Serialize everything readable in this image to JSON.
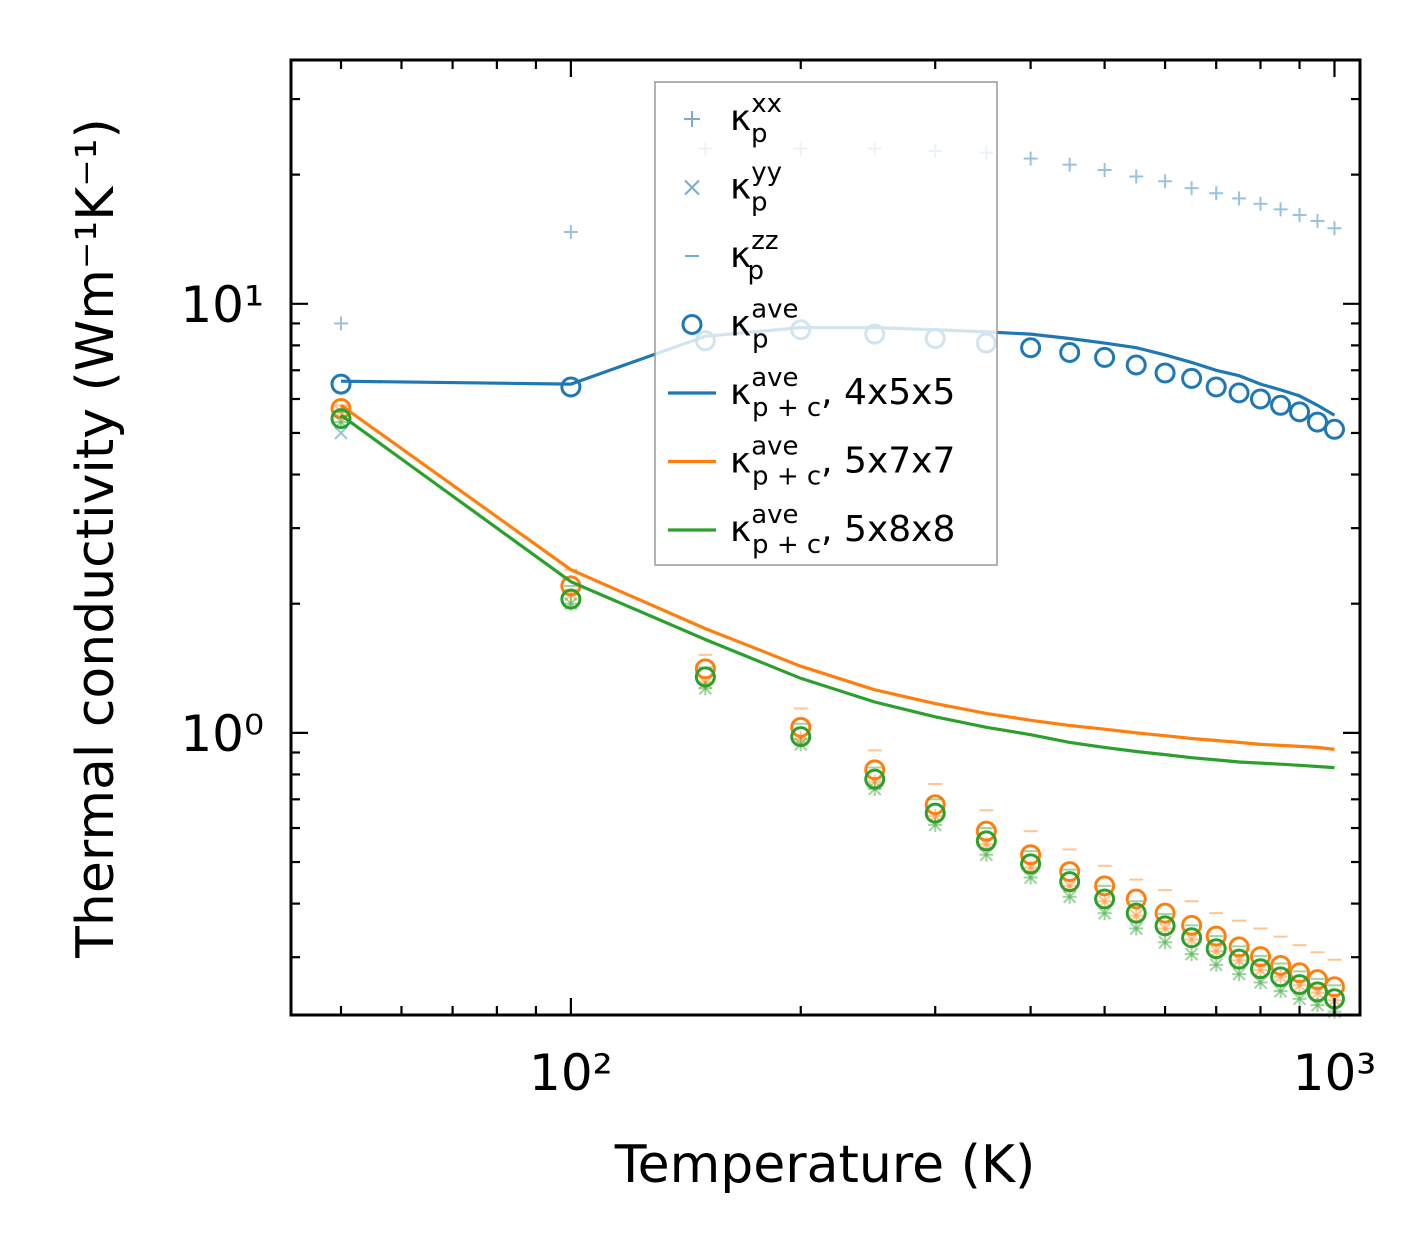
{
  "chart_data": {
    "type": "scatter",
    "title": "",
    "xlabel": "Temperature (K)",
    "ylabel": "Thermal conductivity (Wm⁻¹K⁻¹)",
    "xscale": "log",
    "yscale": "log",
    "xlim": [
      43,
      1080
    ],
    "ylim": [
      0.22,
      37
    ],
    "xticks": [
      {
        "value": 100,
        "label": "10²"
      },
      {
        "value": 1000,
        "label": "10³"
      }
    ],
    "yticks": [
      {
        "value": 1,
        "label": "10⁰"
      },
      {
        "value": 10,
        "label": "10¹"
      }
    ],
    "x": [
      50,
      100,
      150,
      200,
      250,
      300,
      350,
      400,
      450,
      500,
      550,
      600,
      650,
      700,
      750,
      800,
      850,
      900,
      950,
      1000
    ],
    "legend_position": "top-center",
    "legend": [
      {
        "label": "κ",
        "sub": "p",
        "sup": "xx",
        "suffix": "",
        "marker": "plus",
        "color": "#1f77b4"
      },
      {
        "label": "κ",
        "sub": "p",
        "sup": "yy",
        "suffix": "",
        "marker": "x",
        "color": "#1f77b4"
      },
      {
        "label": "κ",
        "sub": "p",
        "sup": "zz",
        "suffix": "",
        "marker": "dash",
        "color": "#1f77b4"
      },
      {
        "label": "κ",
        "sub": "p",
        "sup": "ave",
        "suffix": "",
        "marker": "circle",
        "color": "#1f77b4"
      },
      {
        "label": "κ",
        "sub": "p + c",
        "sup": "ave",
        "suffix": ", 4x5x5",
        "marker": "line",
        "color": "#1f77b4"
      },
      {
        "label": "κ",
        "sub": "p + c",
        "sup": "ave",
        "suffix": ", 5x7x7",
        "marker": "line",
        "color": "#ff7f0e"
      },
      {
        "label": "κ",
        "sub": "p + c",
        "sup": "ave",
        "suffix": ", 5x8x8",
        "marker": "line",
        "color": "#2ca02c"
      }
    ],
    "series": [
      {
        "name": "4x5x5",
        "color": "#1f77b4",
        "kp_xx": [
          9.0,
          14.7,
          23.0,
          23.0,
          23.0,
          22.7,
          22.5,
          21.8,
          21.1,
          20.5,
          19.8,
          19.3,
          18.6,
          18.1,
          17.6,
          17.1,
          16.6,
          16.1,
          15.6,
          15.0
        ],
        "kp_yy": [
          5.0,
          null,
          null,
          null,
          null,
          null,
          null,
          null,
          null,
          null,
          null,
          null,
          null,
          null,
          null,
          null,
          null,
          null,
          null,
          null
        ],
        "kp_zz": [
          null,
          null,
          null,
          null,
          null,
          null,
          null,
          null,
          null,
          null,
          null,
          null,
          null,
          null,
          null,
          null,
          null,
          null,
          null,
          null
        ],
        "kp_ave": [
          6.5,
          6.4,
          8.2,
          8.7,
          8.5,
          8.3,
          8.1,
          7.9,
          7.7,
          7.5,
          7.2,
          6.9,
          6.7,
          6.4,
          6.2,
          6.0,
          5.8,
          5.6,
          5.3,
          5.1
        ],
        "kpc_ave": [
          6.6,
          6.5,
          8.4,
          8.8,
          8.8,
          8.7,
          8.6,
          8.5,
          8.3,
          8.1,
          7.9,
          7.6,
          7.3,
          7.0,
          6.8,
          6.5,
          6.3,
          6.1,
          5.8,
          5.5
        ]
      },
      {
        "name": "5x7x7",
        "color": "#ff7f0e",
        "kp_xx": [
          5.6,
          2.1,
          1.31,
          0.97,
          0.77,
          0.64,
          0.55,
          0.485,
          0.44,
          0.405,
          0.375,
          0.35,
          0.33,
          0.31,
          0.295,
          0.28,
          0.27,
          0.258,
          0.248,
          0.238
        ],
        "kp_yy": [
          5.6,
          2.1,
          1.31,
          0.97,
          0.77,
          0.64,
          0.55,
          0.485,
          0.44,
          0.405,
          0.375,
          0.35,
          0.33,
          0.31,
          0.295,
          0.28,
          0.27,
          0.258,
          0.248,
          0.238
        ],
        "kp_zz": [
          5.8,
          2.4,
          1.52,
          1.14,
          0.91,
          0.76,
          0.66,
          0.59,
          0.535,
          0.49,
          0.455,
          0.43,
          0.405,
          0.38,
          0.365,
          0.35,
          0.335,
          0.32,
          0.308,
          0.296
        ],
        "kp_ave": [
          5.7,
          2.2,
          1.41,
          1.03,
          0.82,
          0.68,
          0.59,
          0.52,
          0.475,
          0.44,
          0.41,
          0.38,
          0.356,
          0.336,
          0.317,
          0.301,
          0.287,
          0.276,
          0.266,
          0.256
        ],
        "kpc_ave": [
          5.8,
          2.4,
          1.75,
          1.43,
          1.26,
          1.17,
          1.11,
          1.07,
          1.04,
          1.02,
          1.0,
          0.985,
          0.97,
          0.96,
          0.95,
          0.94,
          0.935,
          0.93,
          0.925,
          0.915
        ]
      },
      {
        "name": "5x8x8",
        "color": "#2ca02c",
        "kp_xx": [
          5.3,
          2.0,
          1.27,
          0.94,
          0.74,
          0.61,
          0.52,
          0.46,
          0.415,
          0.38,
          0.35,
          0.325,
          0.305,
          0.288,
          0.274,
          0.262,
          0.25,
          0.24,
          0.232,
          0.224
        ],
        "kp_yy": [
          5.3,
          2.0,
          1.27,
          0.94,
          0.74,
          0.61,
          0.52,
          0.46,
          0.415,
          0.38,
          0.35,
          0.325,
          0.305,
          0.288,
          0.274,
          0.262,
          0.25,
          0.24,
          0.232,
          0.224
        ],
        "kp_zz": [
          5.6,
          2.2,
          1.42,
          1.05,
          0.83,
          0.7,
          0.6,
          0.53,
          0.48,
          0.44,
          0.405,
          0.378,
          0.356,
          0.336,
          0.318,
          0.302,
          0.29,
          0.278,
          0.267,
          0.258
        ],
        "kp_ave": [
          5.4,
          2.05,
          1.35,
          0.98,
          0.78,
          0.65,
          0.56,
          0.495,
          0.45,
          0.41,
          0.38,
          0.355,
          0.333,
          0.314,
          0.297,
          0.282,
          0.27,
          0.259,
          0.249,
          0.24
        ],
        "kpc_ave": [
          5.5,
          2.25,
          1.65,
          1.34,
          1.18,
          1.09,
          1.03,
          0.99,
          0.95,
          0.925,
          0.905,
          0.89,
          0.875,
          0.865,
          0.855,
          0.85,
          0.845,
          0.84,
          0.835,
          0.83
        ]
      }
    ]
  }
}
